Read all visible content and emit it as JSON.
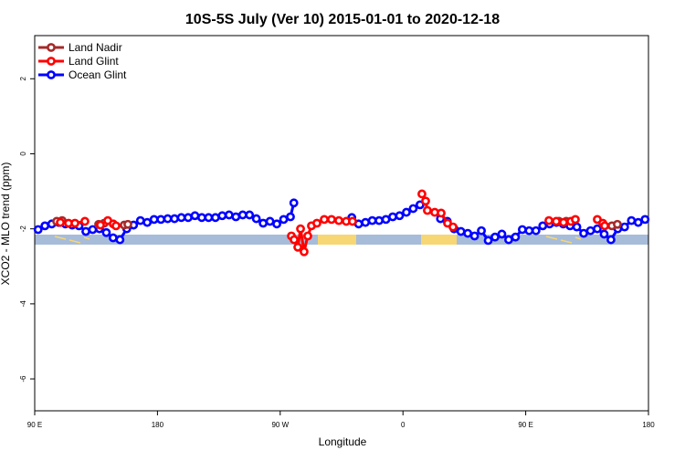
{
  "chart_data": {
    "type": "line",
    "title": "10S-5S July (Ver 10)   2015-01-01 to 2020-12-18",
    "x_label": "Longitude",
    "y_label": "XCO2 - MLO trend (ppm)",
    "xlim": [
      90,
      540
    ],
    "xticks": [
      {
        "value": 90,
        "label": "90 E"
      },
      180,
      {
        "value": 270,
        "label": "90 W"
      },
      {
        "value": 360,
        "label": "0"
      },
      {
        "value": 450,
        "label": "90 E"
      },
      {
        "value": 540,
        "label": "180"
      }
    ],
    "ylim": [
      -6.85,
      3.15
    ],
    "yticks": [
      2,
      0,
      -2,
      -4,
      -6
    ],
    "legend": "top-left",
    "series": [
      {
        "name": "Land Nadir",
        "color": "#a52a2a",
        "x": [
          106.1,
          110.1,
          120,
          136.9,
          140.9,
          150,
          155.6,
          158.3,
          300,
          474.4,
          479.7,
          500,
          513.2,
          517.2
        ],
        "values": [
          -1.8,
          -1.78,
          null,
          -1.88,
          -1.85,
          null,
          -1.9,
          -1.88,
          null,
          -1.8,
          -1.8,
          null,
          -1.92,
          -1.88
        ]
      },
      {
        "name": "Land Glint",
        "color": "#ff0000",
        "x": [
          108.8,
          114.8,
          119.5,
          126.8,
          132,
          138.2,
          143.6,
          147.6,
          149.6,
          200,
          278.2,
          280.2,
          282.9,
          284.9,
          287.5,
          290.2,
          292.9,
          296.9,
          302.3,
          307.6,
          313.0,
          318.4,
          323.0,
          350,
          373.9,
          376.6,
          377.9,
          383.3,
          388.0,
          392.7,
          396.7,
          430,
          467.0,
          472.4,
          477.7,
          483.1,
          486.4,
          495,
          502.5,
          506.5,
          507.9
        ],
        "values": [
          -1.83,
          -1.85,
          -1.85,
          -1.8,
          null,
          -1.9,
          -1.78,
          -1.87,
          -1.92,
          null,
          -2.19,
          -2.29,
          -2.49,
          -2.0,
          -2.61,
          -2.19,
          -1.92,
          -1.85,
          -1.75,
          -1.75,
          -1.78,
          -1.8,
          -1.8,
          null,
          -1.07,
          -1.26,
          -1.51,
          -1.56,
          -1.58,
          -1.85,
          -1.95,
          null,
          -1.78,
          -1.8,
          -1.83,
          -1.8,
          -1.75,
          null,
          -1.75,
          -1.85,
          -1.92
        ]
      },
      {
        "name": "Ocean Glint",
        "color": "#0000ff",
        "x": [
          92.5,
          97.5,
          102.5,
          107.5,
          112.5,
          117.5,
          122.5,
          127.5,
          132.5,
          137.5,
          142.5,
          147.5,
          152.5,
          157.5,
          162.5,
          167.5,
          172.5,
          177.5,
          182.5,
          187.5,
          192.5,
          197.5,
          202.5,
          207.5,
          212.5,
          217.5,
          222.5,
          227.5,
          232.5,
          237.5,
          242.5,
          247.5,
          252.5,
          257.5,
          262.5,
          267.5,
          272.5,
          277.5,
          280,
          300,
          322.5,
          327.5,
          332.5,
          337.5,
          342.5,
          347.5,
          352.5,
          357.5,
          362.5,
          367.5,
          372.5,
          380,
          387.5,
          392.5,
          397.5,
          402.5,
          407.5,
          412.5,
          417.5,
          422.5,
          427.5,
          432.5,
          437.5,
          442.5,
          447.5,
          452.5,
          457.5,
          462.5,
          467.5,
          472.5,
          477.5,
          482.5,
          487.5,
          492.5,
          497.5,
          502.5,
          507.5,
          512.5,
          517.5,
          522.5,
          527.5,
          532.5,
          537.5
        ],
        "values": [
          -2.02,
          -1.92,
          -1.87,
          -1.83,
          -1.87,
          -1.9,
          -1.92,
          -2.07,
          -2.02,
          -2.0,
          -2.1,
          -2.24,
          -2.29,
          -2.0,
          -1.9,
          -1.78,
          -1.83,
          -1.75,
          -1.75,
          -1.73,
          -1.73,
          -1.7,
          -1.7,
          -1.65,
          -1.7,
          -1.7,
          -1.7,
          -1.65,
          -1.63,
          -1.68,
          -1.63,
          -1.63,
          -1.73,
          -1.85,
          -1.8,
          -1.87,
          -1.75,
          -1.68,
          -1.31,
          null,
          -1.7,
          -1.87,
          -1.83,
          -1.78,
          -1.78,
          -1.75,
          -1.68,
          -1.65,
          -1.56,
          -1.46,
          -1.36,
          null,
          -1.73,
          -1.8,
          -2.0,
          -2.07,
          -2.12,
          -2.19,
          -2.05,
          -2.31,
          -2.22,
          -2.14,
          -2.29,
          -2.22,
          -2.02,
          -2.05,
          -2.05,
          -1.92,
          -1.87,
          -1.83,
          -1.87,
          -1.92,
          -1.95,
          -2.12,
          -2.05,
          -2.0,
          -2.14,
          -2.29,
          -2.0,
          -1.95,
          -1.78,
          -1.83,
          -1.75
        ]
      }
    ]
  }
}
